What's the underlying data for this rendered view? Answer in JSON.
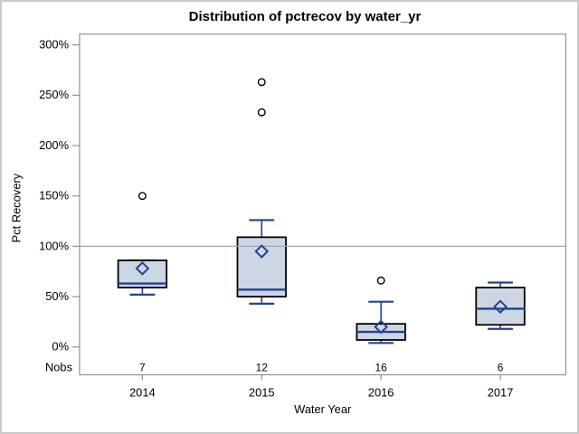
{
  "chart_data": {
    "type": "boxplot",
    "title": "Distribution of pctrecov by water_yr",
    "xlabel": "Water Year",
    "ylabel": "Pct Recovery",
    "nobs_label": "Nobs",
    "y_axis": {
      "min": 0,
      "max": 300,
      "tick_step": 50,
      "tick_labels": [
        "0%",
        "50%",
        "100%",
        "150%",
        "200%",
        "250%",
        "300%"
      ],
      "unit": "percent"
    },
    "reference_line": 100,
    "grid": false,
    "legend": false,
    "categories": [
      "2014",
      "2015",
      "2016",
      "2017"
    ],
    "series": [
      {
        "category": "2014",
        "nobs": 7,
        "whisker_low": 52,
        "q1": 59,
        "median": 63,
        "q3": 86,
        "whisker_high": 86,
        "mean": 78,
        "outliers": [
          150
        ]
      },
      {
        "category": "2015",
        "nobs": 12,
        "whisker_low": 43,
        "q1": 50,
        "median": 57,
        "q3": 109,
        "whisker_high": 126,
        "mean": 95,
        "outliers": [
          233,
          263
        ]
      },
      {
        "category": "2016",
        "nobs": 16,
        "whisker_low": 4,
        "q1": 7,
        "median": 15,
        "q3": 23,
        "whisker_high": 45,
        "mean": 20,
        "outliers": [
          66
        ]
      },
      {
        "category": "2017",
        "nobs": 6,
        "whisker_low": 18,
        "q1": 22,
        "median": 38,
        "q3": 59,
        "whisker_high": 64,
        "mean": 40,
        "outliers": []
      }
    ],
    "colors": {
      "box_fill": "#cdd6e4",
      "box_border": "#000000",
      "whisker_blue": "#23428f",
      "frame_gray": "#8e9295",
      "reference_gray": "#a3a6a9",
      "outlier_fill": "#ffffff",
      "outlier_stroke": "#000000",
      "text": "#000000",
      "background": "#ffffff"
    }
  }
}
